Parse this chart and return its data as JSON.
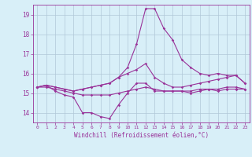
{
  "xlabel": "Windchill (Refroidissement éolien,°C)",
  "x": [
    0,
    1,
    2,
    3,
    4,
    5,
    6,
    7,
    8,
    9,
    10,
    11,
    12,
    13,
    14,
    15,
    16,
    17,
    18,
    19,
    20,
    21,
    22,
    23
  ],
  "line1": [
    15.3,
    15.4,
    15.1,
    14.9,
    14.8,
    14.0,
    14.0,
    13.8,
    13.7,
    14.4,
    15.0,
    15.5,
    15.5,
    15.1,
    15.1,
    15.1,
    15.1,
    15.0,
    15.1,
    15.2,
    15.1,
    15.2,
    15.2,
    15.2
  ],
  "line2": [
    15.3,
    15.4,
    15.3,
    15.2,
    15.1,
    15.2,
    15.3,
    15.4,
    15.5,
    15.8,
    16.3,
    17.5,
    19.3,
    19.3,
    18.3,
    17.7,
    16.7,
    16.3,
    16.0,
    15.9,
    16.0,
    15.9,
    15.9,
    15.5
  ],
  "line3": [
    15.3,
    15.4,
    15.3,
    15.2,
    15.1,
    15.2,
    15.3,
    15.4,
    15.5,
    15.8,
    16.0,
    16.2,
    16.5,
    15.8,
    15.5,
    15.3,
    15.3,
    15.4,
    15.5,
    15.6,
    15.7,
    15.8,
    15.9,
    15.5
  ],
  "line4": [
    15.3,
    15.3,
    15.2,
    15.1,
    15.0,
    14.9,
    14.9,
    14.9,
    14.9,
    15.0,
    15.1,
    15.2,
    15.3,
    15.2,
    15.1,
    15.1,
    15.1,
    15.1,
    15.2,
    15.2,
    15.2,
    15.3,
    15.3,
    15.2
  ],
  "line_color": "#993399",
  "bg_color": "#d8eff8",
  "grid_color": "#b0c8d8",
  "ylim": [
    13.5,
    19.5
  ],
  "yticks": [
    14,
    15,
    16,
    17,
    18,
    19
  ],
  "xlim": [
    -0.5,
    23.5
  ]
}
